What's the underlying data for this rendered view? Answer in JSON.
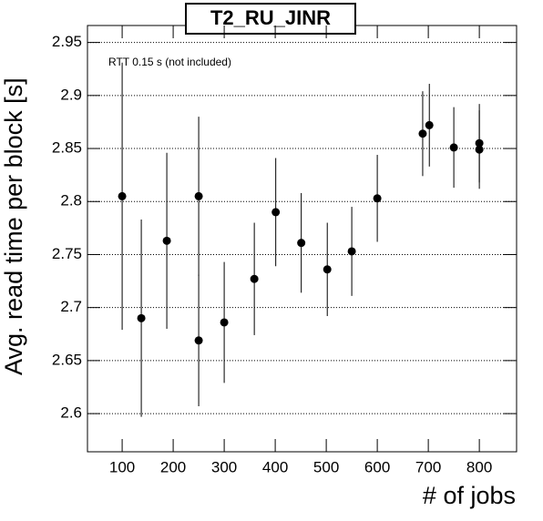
{
  "chart_data": {
    "type": "scatter",
    "title": "T2_RU_JINR",
    "annotation": "RTT 0.15 s (not included)",
    "x_label": "# of jobs",
    "y_label": "Avg. read time per block [s]",
    "x": [
      100,
      137.5,
      187.5,
      250,
      250,
      300,
      359,
      401,
      451,
      502,
      550,
      600,
      689,
      702,
      750,
      800,
      800
    ],
    "values": [
      2.805,
      2.69,
      2.763,
      2.805,
      2.669,
      2.686,
      2.727,
      2.79,
      2.761,
      2.736,
      2.753,
      2.803,
      2.864,
      2.872,
      2.851,
      2.855,
      2.849
    ],
    "errors": [
      0.126,
      0.093,
      0.083,
      0.075,
      0.062,
      0.057,
      0.053,
      0.051,
      0.047,
      0.044,
      0.042,
      0.041,
      0.04,
      0.039,
      0.038,
      0.037,
      0.037
    ],
    "color": "#000000",
    "xlim": [
      32,
      873
    ],
    "ylim": [
      2.564,
      2.966
    ],
    "xticks": [
      100,
      200,
      300,
      400,
      500,
      600,
      700,
      800
    ],
    "yticks": [
      2.6,
      2.65,
      2.7,
      2.75,
      2.8,
      2.85,
      2.9,
      2.95
    ],
    "grid": true
  }
}
